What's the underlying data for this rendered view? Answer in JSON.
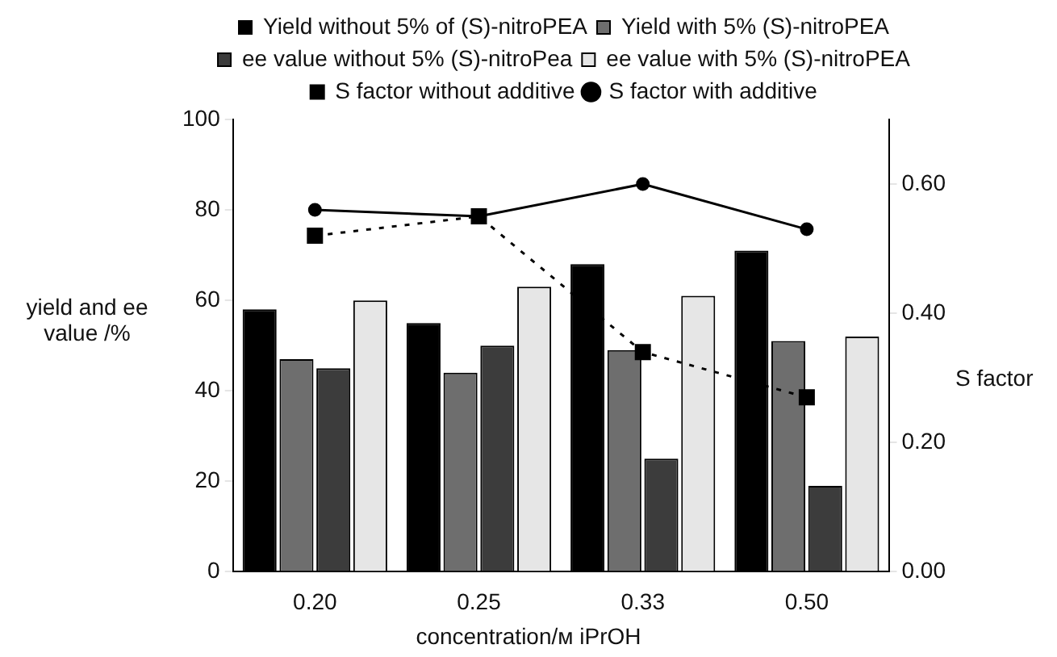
{
  "chart_data": {
    "type": "bar",
    "xlabel": "concentration/ᴍ iPrOH",
    "ylabel": "yield and ee value /%",
    "y2label": "S factor",
    "categories": [
      "0.20",
      "0.25",
      "0.33",
      "0.50"
    ],
    "ylim": [
      0,
      100
    ],
    "yticks": [
      0,
      20,
      40,
      60,
      80,
      100
    ],
    "y2lim": [
      0,
      0.7
    ],
    "y2ticks": [
      {
        "value": 0,
        "label": "0.00"
      },
      {
        "value": 0.2,
        "label": "0.20"
      },
      {
        "value": 0.4,
        "label": "0.40"
      },
      {
        "value": 0.6,
        "label": "0.60"
      }
    ],
    "grid": false,
    "legend": "top",
    "series": [
      {
        "name": "Yield without 5% of (S)-nitroPEA",
        "color": "#000000",
        "values": [
          58,
          55,
          68,
          71
        ]
      },
      {
        "name": "Yield with 5% (S)-nitroPEA",
        "color": "#6e6e6e",
        "values": [
          47,
          44,
          49,
          51
        ]
      },
      {
        "name": "ee value without 5% (S)-nitroPea",
        "color": "#3c3c3c",
        "values": [
          45,
          50,
          25,
          19
        ]
      },
      {
        "name": "ee value with 5% (S)-nitroPEA",
        "color": "#e6e6e6",
        "values": [
          60,
          63,
          61,
          52
        ]
      },
      {
        "name": "S factor without additive",
        "type": "line",
        "axis": "y2",
        "color": "#000000",
        "marker": "square",
        "line_style": "dotted",
        "values": [
          0.52,
          0.55,
          0.34,
          0.27
        ]
      },
      {
        "name": "S factor with additive",
        "type": "line",
        "axis": "y2",
        "color": "#000000",
        "marker": "circle",
        "line_style": "solid",
        "values": [
          0.56,
          0.55,
          0.6,
          0.53
        ]
      }
    ]
  }
}
